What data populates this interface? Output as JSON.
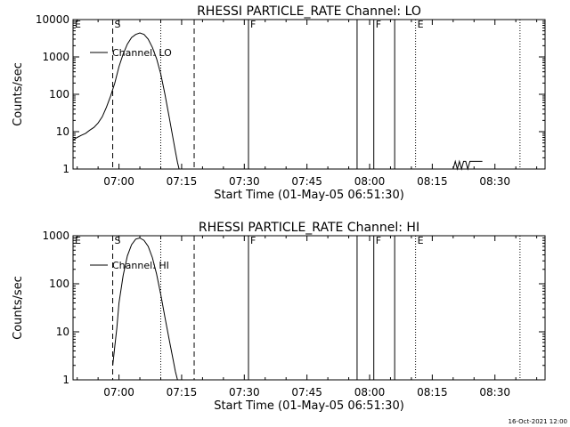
{
  "footer": {
    "timestamp": "16-Oct-2021 12:00"
  },
  "chart_data": [
    {
      "type": "line",
      "title": "RHESSI PARTICLE_RATE Channel: LO",
      "xlabel": "Start Time (01-May-05 06:51:30)",
      "ylabel": "Counts/sec",
      "y_scale": "log",
      "xlim": [
        -11,
        102
      ],
      "ylim": [
        1,
        10000
      ],
      "x_ticks": [
        {
          "x": 0,
          "label": "07:00"
        },
        {
          "x": 15,
          "label": "07:15"
        },
        {
          "x": 30,
          "label": "07:30"
        },
        {
          "x": 45,
          "label": "07:45"
        },
        {
          "x": 60,
          "label": "08:00"
        },
        {
          "x": 75,
          "label": "08:15"
        },
        {
          "x": 90,
          "label": "08:30"
        }
      ],
      "y_ticks": [
        {
          "y": 1,
          "label": "1"
        },
        {
          "y": 10,
          "label": "10"
        },
        {
          "y": 100,
          "label": "100"
        },
        {
          "y": 1000,
          "label": "1000"
        },
        {
          "y": 10000,
          "label": "10000"
        }
      ],
      "legend": {
        "label": "Channel: LO",
        "position": "top-left"
      },
      "series": [
        {
          "name": "Channel: LO",
          "x": [
            -11,
            -10,
            -9,
            -8,
            -7,
            -6,
            -5,
            -4,
            -3,
            -2,
            -1,
            0,
            1,
            2,
            3,
            4,
            5,
            6,
            7,
            8,
            9,
            10,
            11,
            12,
            13,
            13.5,
            14,
            14.4
          ],
          "y": [
            6,
            7,
            8,
            9,
            11,
            13,
            17,
            25,
            45,
            90,
            200,
            550,
            1200,
            2200,
            3300,
            4000,
            4400,
            4000,
            3000,
            1800,
            900,
            350,
            100,
            25,
            6,
            3,
            1.5,
            1
          ]
        },
        {
          "x": [
            80,
            80.5,
            81,
            81.5,
            82,
            82.5,
            83,
            83.5,
            84,
            84.5,
            85,
            86,
            87
          ],
          "y": [
            1,
            1.6,
            1,
            1.6,
            1,
            1.6,
            1.6,
            1,
            1.6,
            1.6,
            1.6,
            1.6,
            1.6
          ]
        }
      ]
    },
    {
      "type": "line",
      "title": "RHESSI PARTICLE_RATE Channel: HI",
      "xlabel": "Start Time (01-May-05 06:51:30)",
      "ylabel": "Counts/sec",
      "y_scale": "log",
      "xlim": [
        -11,
        102
      ],
      "ylim": [
        1,
        1000
      ],
      "x_ticks": [
        {
          "x": 0,
          "label": "07:00"
        },
        {
          "x": 15,
          "label": "07:15"
        },
        {
          "x": 30,
          "label": "07:30"
        },
        {
          "x": 45,
          "label": "07:45"
        },
        {
          "x": 60,
          "label": "08:00"
        },
        {
          "x": 75,
          "label": "08:15"
        },
        {
          "x": 90,
          "label": "08:30"
        }
      ],
      "y_ticks": [
        {
          "y": 1,
          "label": "1"
        },
        {
          "y": 10,
          "label": "10"
        },
        {
          "y": 100,
          "label": "100"
        },
        {
          "y": 1000,
          "label": "1000"
        }
      ],
      "legend": {
        "label": "Channel: HI",
        "position": "top-left"
      },
      "series": [
        {
          "name": "Channel: HI",
          "x": [
            -1.5,
            -1,
            -0.5,
            0,
            1,
            2,
            3,
            4,
            5,
            6,
            7,
            8,
            9,
            10,
            11,
            12,
            13,
            13.5,
            14
          ],
          "y": [
            2,
            5,
            12,
            40,
            150,
            380,
            650,
            850,
            900,
            800,
            600,
            350,
            160,
            60,
            20,
            7,
            2.5,
            1.5,
            1
          ]
        }
      ]
    }
  ],
  "flags": [
    {
      "x": -11,
      "label": "E",
      "style": "none"
    },
    {
      "x": -1.5,
      "label": "S",
      "style": "dashed"
    },
    {
      "x": 10,
      "label": "",
      "style": "dotted"
    },
    {
      "x": 18,
      "label": "",
      "style": "dashed"
    },
    {
      "x": 31,
      "label": "F",
      "style": "solid"
    },
    {
      "x": 57,
      "label": "",
      "style": "solid"
    },
    {
      "x": 61,
      "label": "F",
      "style": "solid"
    },
    {
      "x": 66,
      "label": "",
      "style": "solid"
    },
    {
      "x": 71,
      "label": "E",
      "style": "dotted"
    },
    {
      "x": 96,
      "label": "",
      "style": "dotted"
    }
  ],
  "colors": {
    "background": "#ffffff",
    "foreground": "#000000"
  }
}
